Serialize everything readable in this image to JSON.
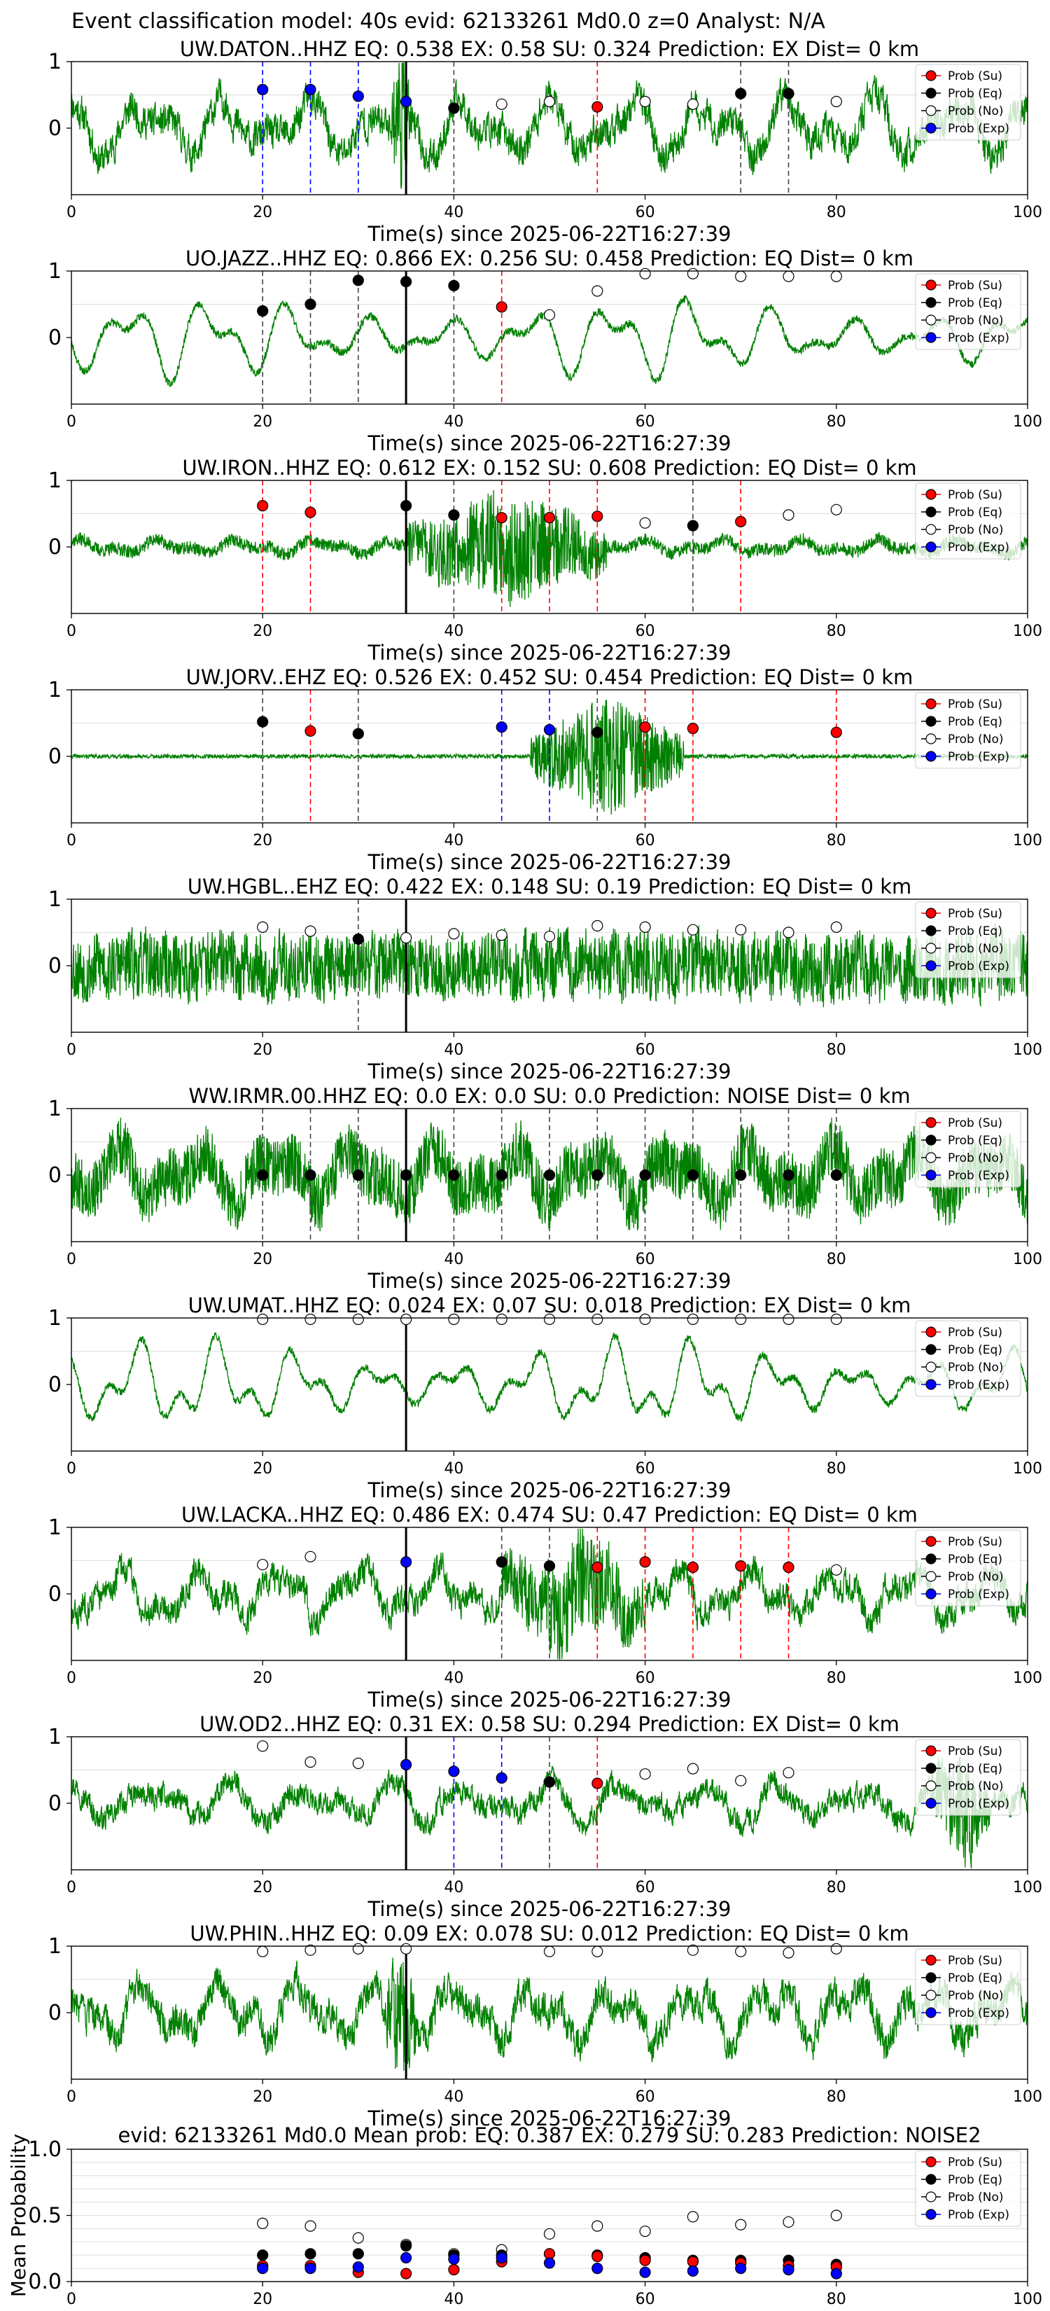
{
  "suptitle": "Event classification model: 40s evid: 62133261 Md0.0 z=0 Analyst: N/A",
  "legend_labels": [
    "Prob (Su)",
    "Prob (Eq)",
    "Prob (No)",
    "Prob (Exp)"
  ],
  "colors": {
    "trace": "#008000",
    "su": "#ff0000",
    "eq": "#000000",
    "no": "#ffffff",
    "exp": "#0000ff",
    "grid": "#dddddd"
  },
  "chart_data": [
    {
      "type": "line",
      "title": "UW.DATON..HHZ   EQ: 0.538  EX: 0.58  SU: 0.324   Prediction: EX    Dist= 0 km",
      "xlabel": "Time(s) since 2025-06-22T16:27:39",
      "xlim": [
        0,
        100
      ],
      "ylim": [
        -1,
        1
      ],
      "xticks": [
        "0",
        "20",
        "40",
        "60",
        "80",
        "100"
      ],
      "yticks": [
        "0",
        "1"
      ],
      "trace": {
        "seed": 11,
        "style": "mix",
        "amp": 0.45,
        "burst": [
          33.5,
          35.5
        ],
        "burstAmp": 1.0
      },
      "onset": 35,
      "points": [
        {
          "t": 20,
          "p": 0.58,
          "cls": "exp"
        },
        {
          "t": 25,
          "p": 0.58,
          "cls": "exp"
        },
        {
          "t": 30,
          "p": 0.48,
          "cls": "exp"
        },
        {
          "t": 35,
          "p": 0.4,
          "cls": "exp"
        },
        {
          "t": 40,
          "p": 0.3,
          "cls": "eq"
        },
        {
          "t": 45,
          "p": 0.36,
          "cls": "no"
        },
        {
          "t": 50,
          "p": 0.4,
          "cls": "no"
        },
        {
          "t": 55,
          "p": 0.32,
          "cls": "su"
        },
        {
          "t": 60,
          "p": 0.4,
          "cls": "no"
        },
        {
          "t": 65,
          "p": 0.36,
          "cls": "no"
        },
        {
          "t": 70,
          "p": 0.52,
          "cls": "eq"
        },
        {
          "t": 75,
          "p": 0.52,
          "cls": "eq"
        },
        {
          "t": 80,
          "p": 0.4,
          "cls": "no"
        }
      ]
    },
    {
      "type": "line",
      "title": "UO.JAZZ..HHZ   EQ: 0.866  EX: 0.256  SU: 0.458   Prediction: EQ    Dist= 0 km",
      "xlabel": "Time(s) since 2025-06-22T16:27:39",
      "xlim": [
        0,
        100
      ],
      "ylim": [
        -1,
        1
      ],
      "xticks": [
        "0",
        "20",
        "40",
        "60",
        "80",
        "100"
      ],
      "yticks": [
        "0",
        "1"
      ],
      "trace": {
        "seed": 23,
        "style": "wave",
        "amp": 0.7,
        "burst": null,
        "burstAmp": 0
      },
      "onset": 35,
      "points": [
        {
          "t": 20,
          "p": 0.4,
          "cls": "eq"
        },
        {
          "t": 25,
          "p": 0.5,
          "cls": "eq"
        },
        {
          "t": 30,
          "p": 0.86,
          "cls": "eq"
        },
        {
          "t": 35,
          "p": 0.84,
          "cls": "eq"
        },
        {
          "t": 40,
          "p": 0.78,
          "cls": "eq"
        },
        {
          "t": 45,
          "p": 0.46,
          "cls": "su"
        },
        {
          "t": 50,
          "p": 0.34,
          "cls": "no"
        },
        {
          "t": 55,
          "p": 0.7,
          "cls": "no"
        },
        {
          "t": 60,
          "p": 0.96,
          "cls": "no"
        },
        {
          "t": 65,
          "p": 0.96,
          "cls": "no"
        },
        {
          "t": 70,
          "p": 0.92,
          "cls": "no"
        },
        {
          "t": 75,
          "p": 0.92,
          "cls": "no"
        },
        {
          "t": 80,
          "p": 0.92,
          "cls": "no"
        }
      ]
    },
    {
      "type": "line",
      "title": "UW.IRON..HHZ   EQ: 0.612  EX: 0.152  SU: 0.608   Prediction: EQ    Dist= 0 km",
      "xlabel": "Time(s) since 2025-06-22T16:27:39",
      "xlim": [
        0,
        100
      ],
      "ylim": [
        -1,
        1
      ],
      "xticks": [
        "0",
        "20",
        "40",
        "60",
        "80",
        "100"
      ],
      "yticks": [
        "0",
        "1"
      ],
      "trace": {
        "seed": 37,
        "style": "quiet",
        "amp": 0.2,
        "burst": [
          35,
          56
        ],
        "burstAmp": 0.75
      },
      "onset": 35,
      "points": [
        {
          "t": 20,
          "p": 0.62,
          "cls": "su"
        },
        {
          "t": 25,
          "p": 0.52,
          "cls": "su"
        },
        {
          "t": 35,
          "p": 0.62,
          "cls": "eq"
        },
        {
          "t": 40,
          "p": 0.48,
          "cls": "eq"
        },
        {
          "t": 45,
          "p": 0.44,
          "cls": "su"
        },
        {
          "t": 50,
          "p": 0.44,
          "cls": "su"
        },
        {
          "t": 55,
          "p": 0.46,
          "cls": "su"
        },
        {
          "t": 60,
          "p": 0.36,
          "cls": "no"
        },
        {
          "t": 65,
          "p": 0.32,
          "cls": "eq"
        },
        {
          "t": 70,
          "p": 0.38,
          "cls": "su"
        },
        {
          "t": 75,
          "p": 0.48,
          "cls": "no"
        },
        {
          "t": 80,
          "p": 0.56,
          "cls": "no"
        }
      ]
    },
    {
      "type": "line",
      "title": "UW.JORV..EHZ   EQ: 0.526  EX: 0.452  SU: 0.454   Prediction: EQ    Dist= 0 km",
      "xlabel": "Time(s) since 2025-06-22T16:27:39",
      "xlim": [
        0,
        100
      ],
      "ylim": [
        -1,
        1
      ],
      "xticks": [
        "0",
        "20",
        "40",
        "60",
        "80",
        "100"
      ],
      "yticks": [
        "0",
        "1"
      ],
      "trace": {
        "seed": 41,
        "style": "flat",
        "amp": 0.03,
        "burst": [
          48,
          64
        ],
        "burstAmp": 0.9
      },
      "onset": null,
      "points": [
        {
          "t": 20,
          "p": 0.52,
          "cls": "eq"
        },
        {
          "t": 25,
          "p": 0.38,
          "cls": "su"
        },
        {
          "t": 30,
          "p": 0.34,
          "cls": "eq"
        },
        {
          "t": 45,
          "p": 0.44,
          "cls": "exp"
        },
        {
          "t": 50,
          "p": 0.4,
          "cls": "exp"
        },
        {
          "t": 55,
          "p": 0.36,
          "cls": "eq"
        },
        {
          "t": 60,
          "p": 0.44,
          "cls": "su"
        },
        {
          "t": 65,
          "p": 0.42,
          "cls": "su"
        },
        {
          "t": 80,
          "p": 0.36,
          "cls": "su"
        }
      ]
    },
    {
      "type": "line",
      "title": "UW.HGBL..EHZ   EQ: 0.422  EX: 0.148  SU: 0.19   Prediction: EQ    Dist= 0 km",
      "xlabel": "Time(s) since 2025-06-22T16:27:39",
      "xlim": [
        0,
        100
      ],
      "ylim": [
        -1,
        1
      ],
      "xticks": [
        "0",
        "20",
        "40",
        "60",
        "80",
        "100"
      ],
      "yticks": [
        "0",
        "1"
      ],
      "trace": {
        "seed": 53,
        "style": "noise",
        "amp": 0.45,
        "burst": null,
        "burstAmp": 0
      },
      "onset": 35,
      "points": [
        {
          "t": 20,
          "p": 0.58,
          "cls": "no"
        },
        {
          "t": 25,
          "p": 0.52,
          "cls": "no"
        },
        {
          "t": 30,
          "p": 0.4,
          "cls": "eq"
        },
        {
          "t": 35,
          "p": 0.42,
          "cls": "no"
        },
        {
          "t": 40,
          "p": 0.48,
          "cls": "no"
        },
        {
          "t": 45,
          "p": 0.46,
          "cls": "no"
        },
        {
          "t": 50,
          "p": 0.44,
          "cls": "no"
        },
        {
          "t": 55,
          "p": 0.6,
          "cls": "no"
        },
        {
          "t": 60,
          "p": 0.58,
          "cls": "no"
        },
        {
          "t": 65,
          "p": 0.54,
          "cls": "no"
        },
        {
          "t": 70,
          "p": 0.54,
          "cls": "no"
        },
        {
          "t": 75,
          "p": 0.5,
          "cls": "no"
        },
        {
          "t": 80,
          "p": 0.58,
          "cls": "no"
        }
      ]
    },
    {
      "type": "line",
      "title": "WW.IRMR.00.HHZ   EQ: 0.0  EX: 0.0  SU: 0.0   Prediction: NOISE    Dist= 0 km",
      "xlabel": "Time(s) since 2025-06-22T16:27:39",
      "xlim": [
        0,
        100
      ],
      "ylim": [
        -1,
        1
      ],
      "xticks": [
        "0",
        "20",
        "40",
        "60",
        "80",
        "100"
      ],
      "yticks": [
        "0",
        "1"
      ],
      "trace": {
        "seed": 67,
        "style": "noisewave",
        "amp": 0.8,
        "burst": null,
        "burstAmp": 0
      },
      "onset": 35,
      "points": [
        {
          "t": 20,
          "p": 0.0,
          "cls": "eq"
        },
        {
          "t": 25,
          "p": 0.0,
          "cls": "eq"
        },
        {
          "t": 30,
          "p": 0.0,
          "cls": "eq"
        },
        {
          "t": 35,
          "p": 0.0,
          "cls": "eq"
        },
        {
          "t": 40,
          "p": 0.0,
          "cls": "eq"
        },
        {
          "t": 45,
          "p": 0.0,
          "cls": "eq"
        },
        {
          "t": 50,
          "p": 0.0,
          "cls": "eq"
        },
        {
          "t": 55,
          "p": 0.0,
          "cls": "eq"
        },
        {
          "t": 60,
          "p": 0.0,
          "cls": "eq"
        },
        {
          "t": 65,
          "p": 0.0,
          "cls": "eq"
        },
        {
          "t": 70,
          "p": 0.0,
          "cls": "eq"
        },
        {
          "t": 75,
          "p": 0.0,
          "cls": "eq"
        },
        {
          "t": 80,
          "p": 0.0,
          "cls": "eq"
        }
      ]
    },
    {
      "type": "line",
      "title": "UW.UMAT..HHZ   EQ: 0.024  EX: 0.07  SU: 0.018   Prediction: EX    Dist= 0 km",
      "xlabel": "Time(s) since 2025-06-22T16:27:39",
      "xlim": [
        0,
        100
      ],
      "ylim": [
        -1,
        1
      ],
      "xticks": [
        "0",
        "20",
        "40",
        "60",
        "80",
        "100"
      ],
      "yticks": [
        "0",
        "1"
      ],
      "trace": {
        "seed": 71,
        "style": "wave",
        "amp": 0.75,
        "burst": null,
        "burstAmp": 0
      },
      "onset": 35,
      "points": [
        {
          "t": 20,
          "p": 0.98,
          "cls": "no"
        },
        {
          "t": 25,
          "p": 0.98,
          "cls": "no"
        },
        {
          "t": 30,
          "p": 0.98,
          "cls": "no"
        },
        {
          "t": 35,
          "p": 0.98,
          "cls": "no"
        },
        {
          "t": 40,
          "p": 0.98,
          "cls": "no"
        },
        {
          "t": 45,
          "p": 0.98,
          "cls": "no"
        },
        {
          "t": 50,
          "p": 0.98,
          "cls": "no"
        },
        {
          "t": 55,
          "p": 0.98,
          "cls": "no"
        },
        {
          "t": 60,
          "p": 0.98,
          "cls": "no"
        },
        {
          "t": 65,
          "p": 0.98,
          "cls": "no"
        },
        {
          "t": 70,
          "p": 0.98,
          "cls": "no"
        },
        {
          "t": 75,
          "p": 0.98,
          "cls": "no"
        },
        {
          "t": 80,
          "p": 0.98,
          "cls": "no"
        }
      ]
    },
    {
      "type": "line",
      "title": "UW.LACKA..HHZ   EQ: 0.486  EX: 0.474  SU: 0.47   Prediction: EQ    Dist= 0 km",
      "xlabel": "Time(s) since 2025-06-22T16:27:39",
      "xlim": [
        0,
        100
      ],
      "ylim": [
        -1,
        1
      ],
      "xticks": [
        "0",
        "20",
        "40",
        "60",
        "80",
        "100"
      ],
      "yticks": [
        "0",
        "1"
      ],
      "trace": {
        "seed": 83,
        "style": "mix",
        "amp": 0.4,
        "burst": [
          45,
          60
        ],
        "burstAmp": 0.6
      },
      "onset": 35,
      "points": [
        {
          "t": 20,
          "p": 0.44,
          "cls": "no"
        },
        {
          "t": 25,
          "p": 0.56,
          "cls": "no"
        },
        {
          "t": 35,
          "p": 0.48,
          "cls": "exp"
        },
        {
          "t": 45,
          "p": 0.48,
          "cls": "eq"
        },
        {
          "t": 50,
          "p": 0.42,
          "cls": "eq"
        },
        {
          "t": 55,
          "p": 0.4,
          "cls": "su"
        },
        {
          "t": 60,
          "p": 0.48,
          "cls": "su"
        },
        {
          "t": 65,
          "p": 0.4,
          "cls": "su"
        },
        {
          "t": 70,
          "p": 0.42,
          "cls": "su"
        },
        {
          "t": 75,
          "p": 0.4,
          "cls": "su"
        },
        {
          "t": 80,
          "p": 0.36,
          "cls": "no"
        }
      ]
    },
    {
      "type": "line",
      "title": "UW.OD2..HHZ   EQ: 0.31  EX: 0.58  SU: 0.294   Prediction: EX    Dist= 0 km",
      "xlabel": "Time(s) since 2025-06-22T16:27:39",
      "xlim": [
        0,
        100
      ],
      "ylim": [
        -1,
        1
      ],
      "xticks": [
        "0",
        "20",
        "40",
        "60",
        "80",
        "100"
      ],
      "yticks": [
        "0",
        "1"
      ],
      "trace": {
        "seed": 97,
        "style": "mix",
        "amp": 0.32,
        "burst": [
          90,
          96
        ],
        "burstAmp": 0.7
      },
      "onset": 35,
      "points": [
        {
          "t": 20,
          "p": 0.86,
          "cls": "no"
        },
        {
          "t": 25,
          "p": 0.62,
          "cls": "no"
        },
        {
          "t": 30,
          "p": 0.6,
          "cls": "no"
        },
        {
          "t": 35,
          "p": 0.58,
          "cls": "exp"
        },
        {
          "t": 40,
          "p": 0.48,
          "cls": "exp"
        },
        {
          "t": 45,
          "p": 0.38,
          "cls": "exp"
        },
        {
          "t": 50,
          "p": 0.32,
          "cls": "eq"
        },
        {
          "t": 55,
          "p": 0.3,
          "cls": "su"
        },
        {
          "t": 60,
          "p": 0.44,
          "cls": "no"
        },
        {
          "t": 65,
          "p": 0.52,
          "cls": "no"
        },
        {
          "t": 70,
          "p": 0.34,
          "cls": "no"
        },
        {
          "t": 75,
          "p": 0.46,
          "cls": "no"
        }
      ]
    },
    {
      "type": "line",
      "title": "UW.PHIN..HHZ   EQ: 0.09  EX: 0.078  SU: 0.012   Prediction: EQ    Dist= 0 km",
      "xlabel": "Time(s) since 2025-06-22T16:27:39",
      "xlim": [
        0,
        100
      ],
      "ylim": [
        -1,
        1
      ],
      "xticks": [
        "0",
        "20",
        "40",
        "60",
        "80",
        "100"
      ],
      "yticks": [
        "0",
        "1"
      ],
      "trace": {
        "seed": 103,
        "style": "mix",
        "amp": 0.45,
        "burst": [
          33,
          36
        ],
        "burstAmp": 0.9
      },
      "onset": 35,
      "points": [
        {
          "t": 20,
          "p": 0.92,
          "cls": "no"
        },
        {
          "t": 25,
          "p": 0.94,
          "cls": "no"
        },
        {
          "t": 30,
          "p": 0.96,
          "cls": "no"
        },
        {
          "t": 35,
          "p": 0.96,
          "cls": "no"
        },
        {
          "t": 50,
          "p": 0.92,
          "cls": "no"
        },
        {
          "t": 55,
          "p": 0.92,
          "cls": "no"
        },
        {
          "t": 65,
          "p": 0.94,
          "cls": "no"
        },
        {
          "t": 70,
          "p": 0.92,
          "cls": "no"
        },
        {
          "t": 75,
          "p": 0.9,
          "cls": "no"
        },
        {
          "t": 80,
          "p": 0.96,
          "cls": "no"
        }
      ]
    },
    {
      "type": "scatter",
      "title": "evid: 62133261   Md0.0   Mean prob:   EQ: 0.387   EX: 0.279   SU: 0.283   Prediction: NOISE2",
      "ylabel": "Mean Probability",
      "xlim": [
        0,
        100
      ],
      "ylim": [
        0,
        1
      ],
      "xticks": [
        "0",
        "20",
        "40",
        "60",
        "80",
        "100"
      ],
      "yticks": [
        "0.0",
        "0.5",
        "1.0"
      ],
      "series": [
        {
          "cls": "no",
          "x": [
            20,
            25,
            30,
            35,
            40,
            45,
            50,
            55,
            60,
            65,
            70,
            75,
            80
          ],
          "y": [
            0.44,
            0.42,
            0.33,
            0.28,
            0.21,
            0.24,
            0.36,
            0.42,
            0.38,
            0.49,
            0.43,
            0.45,
            0.5
          ]
        },
        {
          "cls": "eq",
          "x": [
            20,
            25,
            30,
            35,
            40,
            45,
            50,
            55,
            60,
            65,
            70,
            75,
            80
          ],
          "y": [
            0.2,
            0.21,
            0.21,
            0.27,
            0.2,
            0.2,
            0.21,
            0.2,
            0.18,
            0.16,
            0.16,
            0.16,
            0.13
          ]
        },
        {
          "cls": "su",
          "x": [
            20,
            25,
            30,
            35,
            40,
            45,
            50,
            55,
            60,
            65,
            70,
            75,
            80
          ],
          "y": [
            0.12,
            0.12,
            0.07,
            0.06,
            0.09,
            0.15,
            0.21,
            0.19,
            0.16,
            0.15,
            0.14,
            0.12,
            0.11
          ]
        },
        {
          "cls": "exp",
          "x": [
            20,
            25,
            30,
            35,
            40,
            45,
            50,
            55,
            60,
            65,
            70,
            75,
            80
          ],
          "y": [
            0.1,
            0.1,
            0.11,
            0.18,
            0.17,
            0.18,
            0.14,
            0.1,
            0.07,
            0.08,
            0.1,
            0.09,
            0.06
          ]
        }
      ]
    }
  ]
}
